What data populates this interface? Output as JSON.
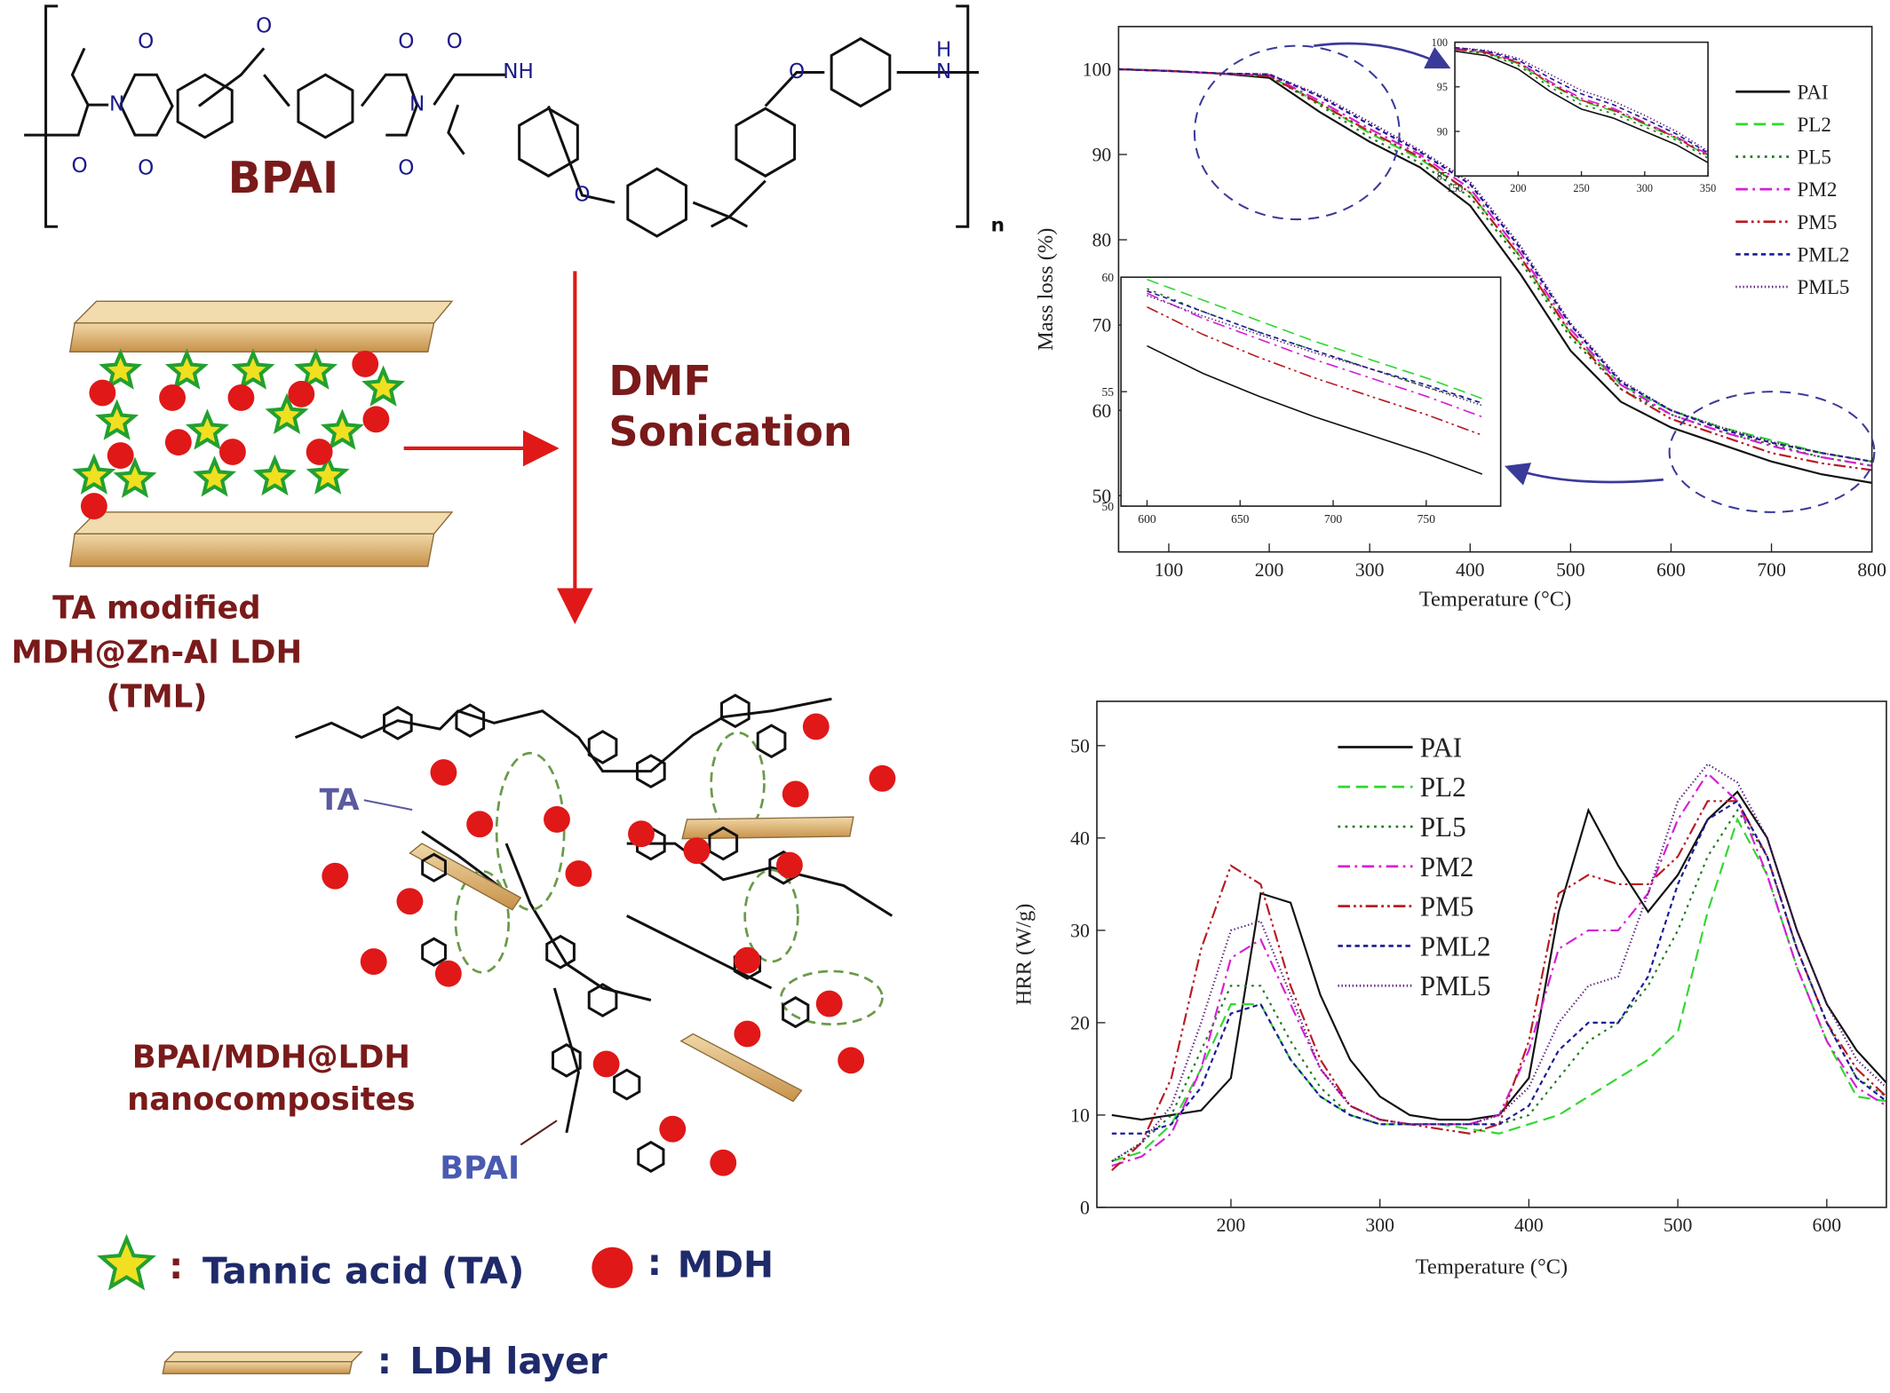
{
  "schematic": {
    "polymer_name": "BPAI",
    "repeat": "n",
    "atoms": [
      "O",
      "O",
      "O",
      "O",
      "O",
      "O",
      "O",
      "O",
      "O",
      "N",
      "N",
      "NH",
      "N",
      "H"
    ],
    "process_1": "DMF",
    "process_2": "Sonication",
    "filler_1": "TA modified",
    "filler_2": "MDH@Zn-Al LDH",
    "filler_3": "(TML)",
    "ta_label": "TA",
    "product_1": "BPAI/MDH@LDH",
    "product_2": "nanocomposites",
    "bpai_label": "BPAI",
    "legend_sep": ":",
    "legend_ta": "Tannic acid (TA)",
    "legend_mdh": "MDH",
    "legend_ldh": "LDH layer"
  },
  "chart_data": [
    {
      "type": "line",
      "x_label": "Temperature (°C)",
      "y_label": "Mass loss (%)",
      "x": [
        50,
        100,
        150,
        200,
        250,
        300,
        350,
        400,
        450,
        500,
        550,
        600,
        650,
        700,
        750,
        800
      ],
      "xlim": [
        50,
        800
      ],
      "ylim": [
        43.4,
        105
      ],
      "xticks": [
        100,
        200,
        300,
        400,
        500,
        600,
        700,
        800
      ],
      "yticks": [
        50,
        60,
        70,
        80,
        90,
        100
      ],
      "series": [
        {
          "name": "PAI",
          "color": "#111111",
          "style": "solid",
          "values": [
            100,
            99.8,
            99.5,
            99,
            95,
            91.5,
            88.5,
            84,
            76,
            67,
            61,
            58,
            56,
            54,
            52.5,
            51.5
          ]
        },
        {
          "name": "PL2",
          "color": "#33d633",
          "style": "dashed",
          "values": [
            100,
            99.8,
            99.5,
            99.2,
            96,
            92.5,
            89.5,
            85.5,
            78,
            69,
            63,
            60,
            58,
            56.5,
            55,
            54
          ]
        },
        {
          "name": "PL5",
          "color": "#1a7a1a",
          "style": "dotted",
          "values": [
            100,
            99.8,
            99.5,
            99.2,
            95.8,
            92,
            89,
            85,
            77.5,
            68.5,
            62.5,
            59.5,
            57.5,
            56,
            54.5,
            53.5
          ]
        },
        {
          "name": "PM2",
          "color": "#d61ed6",
          "style": "dashdot",
          "values": [
            100,
            99.8,
            99.5,
            99.3,
            96.3,
            93,
            90,
            86,
            78.5,
            69.5,
            63,
            59.5,
            57.5,
            55.8,
            54.5,
            53.5
          ]
        },
        {
          "name": "PM5",
          "color": "#b81c24",
          "style": "dashdotdot",
          "values": [
            100,
            99.8,
            99.5,
            99.2,
            96,
            92.7,
            89.7,
            85.5,
            78,
            69,
            62.5,
            59,
            57,
            55,
            53.8,
            53
          ]
        },
        {
          "name": "PML2",
          "color": "#1a1a96",
          "style": "shortdash",
          "values": [
            100,
            99.8,
            99.5,
            99.4,
            96.8,
            93.5,
            90.3,
            86.5,
            79,
            70,
            63.3,
            60,
            57.8,
            56.2,
            55,
            54
          ]
        },
        {
          "name": "PML5",
          "color": "#5a1a7a",
          "style": "finedotted",
          "values": [
            100,
            99.8,
            99.5,
            99.4,
            97,
            93.8,
            90.5,
            86.8,
            79.3,
            70.2,
            63.5,
            60,
            58,
            56.3,
            55,
            54
          ]
        }
      ]
    },
    {
      "type": "line",
      "x": [
        150,
        175,
        200,
        225,
        250,
        275,
        300,
        325,
        350
      ],
      "xlim": [
        150,
        350
      ],
      "ylim": [
        85,
        100
      ],
      "xticks": [
        150,
        200,
        250,
        300,
        350
      ],
      "yticks": [
        85,
        90,
        95,
        100
      ],
      "series": [
        {
          "color": "#111111",
          "style": "solid",
          "values": [
            99,
            98.5,
            97,
            94.5,
            92.5,
            91.5,
            90,
            88.5,
            86.5
          ]
        },
        {
          "color": "#33d633",
          "style": "dashed",
          "values": [
            99.2,
            98.8,
            97.6,
            95.3,
            93.4,
            92.3,
            90.8,
            89.2,
            87.3
          ]
        },
        {
          "color": "#1a7a1a",
          "style": "dotted",
          "values": [
            99.2,
            98.7,
            97.4,
            95,
            93,
            92,
            90.5,
            89,
            87
          ]
        },
        {
          "color": "#d61ed6",
          "style": "dashdot",
          "values": [
            99.3,
            98.9,
            97.8,
            95.6,
            93.7,
            92.6,
            91,
            89.4,
            87.4
          ]
        },
        {
          "color": "#b81c24",
          "style": "dashdotdot",
          "values": [
            99.2,
            98.8,
            97.7,
            95.4,
            93.5,
            92.4,
            90.9,
            89.3,
            87.2
          ]
        },
        {
          "color": "#1a1a96",
          "style": "shortdash",
          "values": [
            99.4,
            99,
            98,
            96,
            94.2,
            93,
            91.4,
            89.7,
            87.6
          ]
        },
        {
          "color": "#5a1a7a",
          "style": "finedotted",
          "values": [
            99.4,
            99.1,
            98.2,
            96.4,
            94.6,
            93.4,
            91.8,
            90,
            87.8
          ]
        }
      ]
    },
    {
      "type": "line",
      "x": [
        600,
        630,
        660,
        690,
        720,
        750,
        780
      ],
      "xlim": [
        586,
        790
      ],
      "ylim": [
        50,
        60
      ],
      "xticks": [
        600,
        650,
        700,
        750
      ],
      "yticks": [
        50,
        55,
        60
      ],
      "series": [
        {
          "color": "#111111",
          "style": "solid",
          "values": [
            57,
            55.8,
            54.8,
            53.9,
            53.1,
            52.3,
            51.4
          ]
        },
        {
          "color": "#33d633",
          "style": "dashed",
          "values": [
            59.9,
            59,
            58.1,
            57.2,
            56.4,
            55.6,
            54.7
          ]
        },
        {
          "color": "#1a7a1a",
          "style": "dotted",
          "values": [
            59.5,
            58.5,
            57.6,
            56.8,
            56,
            55.2,
            54.5
          ]
        },
        {
          "color": "#d61ed6",
          "style": "dashdot",
          "values": [
            59.3,
            58.2,
            57.3,
            56.4,
            55.6,
            54.8,
            53.9
          ]
        },
        {
          "color": "#b81c24",
          "style": "dashdotdot",
          "values": [
            58.7,
            57.5,
            56.5,
            55.6,
            54.8,
            54,
            53.1
          ]
        },
        {
          "color": "#1a1a96",
          "style": "shortdash",
          "values": [
            59.4,
            58.5,
            57.6,
            56.8,
            56,
            55.3,
            54.5
          ]
        },
        {
          "color": "#5a1a7a",
          "style": "finedotted",
          "values": [
            59.2,
            58.3,
            57.5,
            56.7,
            56,
            55.2,
            54.4
          ]
        }
      ]
    },
    {
      "type": "line",
      "x_label": "Temperature (°C)",
      "y_label": "HRR (W/g)",
      "x": [
        120,
        140,
        160,
        180,
        200,
        220,
        240,
        260,
        280,
        300,
        320,
        340,
        360,
        380,
        400,
        420,
        440,
        460,
        480,
        500,
        520,
        540,
        560,
        580,
        600,
        620,
        640
      ],
      "xlim": [
        110,
        640
      ],
      "ylim": [
        0,
        54.8
      ],
      "xticks": [
        200,
        300,
        400,
        500,
        600
      ],
      "yticks": [
        0,
        10,
        20,
        30,
        40,
        50
      ],
      "series": [
        {
          "name": "PAI",
          "color": "#111111",
          "style": "solid",
          "values": [
            10,
            9.5,
            10,
            10.5,
            14,
            34,
            33,
            23,
            16,
            12,
            10,
            9.5,
            9.5,
            10,
            14,
            32,
            43,
            37,
            32,
            36,
            42,
            45,
            40,
            30,
            22,
            17,
            13.5
          ]
        },
        {
          "name": "PL2",
          "color": "#33d633",
          "style": "dashed",
          "values": [
            5,
            6,
            9,
            15,
            22,
            22,
            16,
            12,
            10,
            9,
            9,
            9,
            8.5,
            8,
            9,
            10,
            12,
            14,
            16,
            19,
            32,
            42,
            36,
            26,
            18,
            12,
            11.5
          ]
        },
        {
          "name": "PL5",
          "color": "#1a7a1a",
          "style": "dotted",
          "values": [
            5,
            7,
            10,
            17,
            24,
            24,
            18,
            13,
            10,
            9,
            9,
            9,
            9,
            9,
            10,
            14,
            18,
            20,
            24,
            30,
            38,
            43,
            38,
            28,
            20,
            14,
            12
          ]
        },
        {
          "name": "PM2",
          "color": "#d61ed6",
          "style": "dashdot",
          "values": [
            4.5,
            5.5,
            8,
            15,
            27,
            29,
            22,
            15,
            11,
            9.5,
            9,
            9,
            9,
            10,
            17,
            28,
            30,
            30,
            34,
            42,
            47,
            44,
            36,
            26,
            18,
            13,
            11
          ]
        },
        {
          "name": "PM5",
          "color": "#b81c24",
          "style": "dashdotdot",
          "values": [
            4,
            7,
            14,
            28,
            37,
            35,
            24,
            16,
            11,
            9.5,
            9,
            8.5,
            8,
            9,
            18,
            34,
            36,
            35,
            35,
            38,
            44,
            44,
            38,
            28,
            20,
            15,
            12
          ]
        },
        {
          "name": "PML2",
          "color": "#1a1a96",
          "style": "shortdash",
          "values": [
            8,
            8,
            9,
            13,
            21,
            22,
            16,
            12,
            10,
            9,
            9,
            9,
            9,
            9,
            11,
            17,
            20,
            20,
            25,
            35,
            42,
            44,
            38,
            28,
            20,
            14,
            11.5
          ]
        },
        {
          "name": "PML5",
          "color": "#5a1a7a",
          "style": "finedotted",
          "values": [
            5,
            7,
            11,
            20,
            30,
            31,
            23,
            15,
            11,
            9.5,
            9,
            9,
            9,
            10,
            13,
            20,
            24,
            25,
            34,
            44,
            48,
            46,
            40,
            30,
            22,
            16,
            13
          ]
        }
      ]
    }
  ]
}
